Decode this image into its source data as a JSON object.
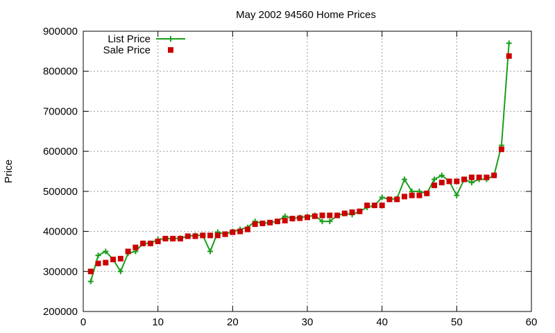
{
  "chart_data": {
    "type": "line",
    "title": "May 2002 94560 Home Prices",
    "xlabel": "",
    "ylabel": "Price",
    "xlim": [
      0,
      60
    ],
    "ylim": [
      200000,
      900000
    ],
    "x_ticks": [
      "0",
      "10",
      "20",
      "30",
      "40",
      "50",
      "60"
    ],
    "y_ticks": [
      "200000",
      "300000",
      "400000",
      "500000",
      "600000",
      "700000",
      "800000",
      "900000"
    ],
    "grid": true,
    "legend_position": "top-left",
    "series": [
      {
        "name": "List Price",
        "style": "linespoints",
        "marker": "plus",
        "color": "#1a9e1a",
        "x": [
          1,
          2,
          3,
          4,
          5,
          6,
          7,
          8,
          9,
          10,
          11,
          12,
          13,
          14,
          15,
          16,
          17,
          18,
          19,
          20,
          21,
          22,
          23,
          24,
          25,
          26,
          27,
          28,
          29,
          30,
          31,
          32,
          33,
          34,
          35,
          36,
          37,
          38,
          39,
          40,
          41,
          42,
          43,
          44,
          45,
          46,
          47,
          48,
          49,
          50,
          51,
          52,
          53,
          54,
          55,
          56,
          57
        ],
        "values": [
          275000,
          340000,
          350000,
          330000,
          300000,
          345000,
          350000,
          370000,
          370000,
          380000,
          382000,
          382000,
          383000,
          388000,
          390000,
          390000,
          350000,
          398000,
          393000,
          400000,
          405000,
          410000,
          425000,
          420000,
          422000,
          425000,
          438000,
          432000,
          435000,
          437000,
          440000,
          425000,
          425000,
          440000,
          445000,
          442000,
          450000,
          460000,
          465000,
          485000,
          480000,
          482000,
          530000,
          500000,
          500000,
          495000,
          530000,
          540000,
          525000,
          490000,
          530000,
          522000,
          530000,
          530000,
          540000,
          615000,
          870000
        ]
      },
      {
        "name": "Sale Price",
        "style": "points",
        "marker": "square",
        "color": "#cc0000",
        "x": [
          1,
          2,
          3,
          4,
          5,
          6,
          7,
          8,
          9,
          10,
          11,
          12,
          13,
          14,
          15,
          16,
          17,
          18,
          19,
          20,
          21,
          22,
          23,
          24,
          25,
          26,
          27,
          28,
          29,
          30,
          31,
          32,
          33,
          34,
          35,
          36,
          37,
          38,
          39,
          40,
          41,
          42,
          43,
          44,
          45,
          46,
          47,
          48,
          49,
          50,
          51,
          52,
          53,
          54,
          55,
          56,
          57
        ],
        "values": [
          300000,
          320000,
          322000,
          330000,
          332000,
          350000,
          360000,
          370000,
          370000,
          375000,
          382000,
          382000,
          382000,
          388000,
          388000,
          390000,
          390000,
          390000,
          393000,
          398000,
          400000,
          405000,
          418000,
          420000,
          422000,
          425000,
          427000,
          432000,
          433000,
          435000,
          438000,
          440000,
          440000,
          440000,
          445000,
          448000,
          450000,
          465000,
          465000,
          465000,
          480000,
          480000,
          487000,
          490000,
          490000,
          495000,
          515000,
          522000,
          525000,
          525000,
          530000,
          535000,
          535000,
          535000,
          540000,
          605000,
          838000
        ]
      }
    ]
  }
}
